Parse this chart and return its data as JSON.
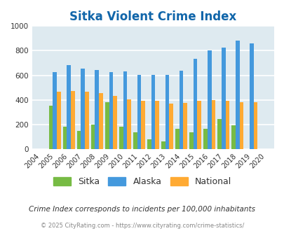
{
  "title": "Sitka Violent Crime Index",
  "years": [
    2004,
    2005,
    2006,
    2007,
    2008,
    2009,
    2010,
    2011,
    2012,
    2013,
    2014,
    2015,
    2016,
    2017,
    2018,
    2019,
    2020
  ],
  "sitka": [
    0,
    350,
    180,
    150,
    200,
    380,
    180,
    135,
    80,
    65,
    165,
    135,
    165,
    245,
    195,
    0,
    0
  ],
  "alaska": [
    0,
    625,
    685,
    655,
    645,
    625,
    630,
    605,
    605,
    605,
    635,
    735,
    805,
    825,
    885,
    860,
    0
  ],
  "national": [
    0,
    465,
    475,
    465,
    455,
    430,
    405,
    395,
    390,
    370,
    375,
    395,
    400,
    395,
    380,
    380,
    0
  ],
  "sitka_color": "#77bb44",
  "alaska_color": "#4499dd",
  "national_color": "#ffaa33",
  "bg_color": "#deeaf0",
  "title_color": "#1166aa",
  "ylim": [
    0,
    1000
  ],
  "yticks": [
    0,
    200,
    400,
    600,
    800,
    1000
  ],
  "subtitle": "Crime Index corresponds to incidents per 100,000 inhabitants",
  "footer": "© 2025 CityRating.com - https://www.cityrating.com/crime-statistics/",
  "bar_width": 0.28,
  "legend_labels": [
    "Sitka",
    "Alaska",
    "National"
  ]
}
